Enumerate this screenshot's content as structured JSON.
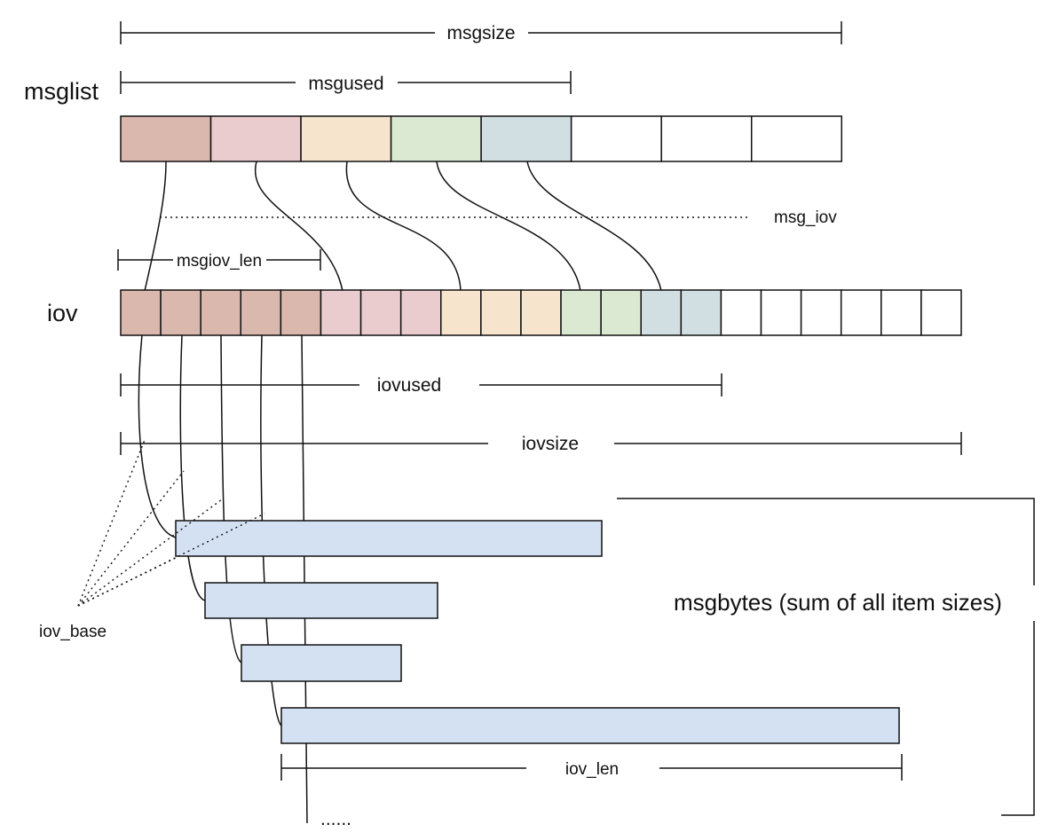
{
  "labels": {
    "msgsize": "msgsize",
    "msgused": "msgused",
    "msglist": "msglist",
    "msg_iov": "msg_iov",
    "msgiov_len": "msgiov_len",
    "iov": "iov",
    "iovused": "iovused",
    "iovsize": "iovsize",
    "iov_base": "iov_base",
    "iov_len": "iov_len",
    "msgbytes": "msgbytes (sum of all item sizes)",
    "ellipsis": "......"
  },
  "colors": {
    "group1": "#dbb8ae",
    "group2": "#eacccf",
    "group3": "#f6e4cc",
    "group4": "#dbe9d3",
    "group5": "#d2dfe2",
    "empty": "#ffffff",
    "buffer": "#d3e1f2",
    "stroke": "#111111"
  },
  "msglist": {
    "cell_colors": [
      "group1",
      "group2",
      "group3",
      "group4",
      "group5",
      "empty",
      "empty",
      "empty"
    ],
    "used": 5,
    "size": 8
  },
  "iov": {
    "cell_colors": [
      "group1",
      "group1",
      "group1",
      "group1",
      "group1",
      "group2",
      "group2",
      "group2",
      "group3",
      "group3",
      "group3",
      "group4",
      "group4",
      "group5",
      "group5",
      "empty",
      "empty",
      "empty",
      "empty",
      "empty",
      "empty"
    ],
    "used": 15,
    "size": 21
  },
  "buffers": {
    "count": 4
  }
}
